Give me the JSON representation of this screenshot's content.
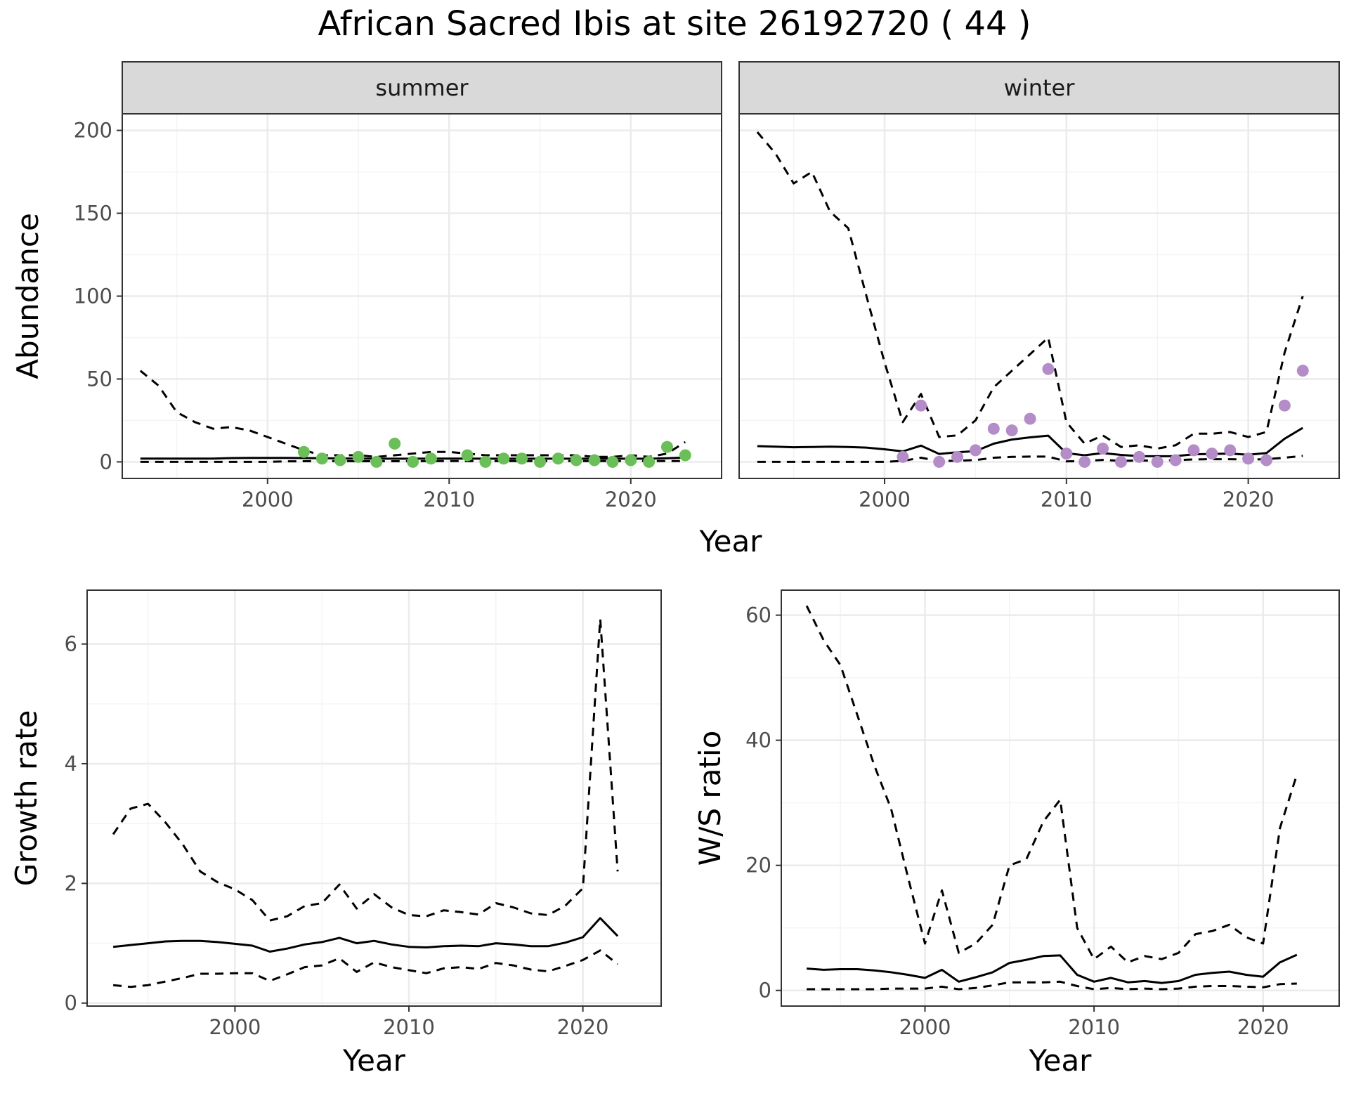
{
  "title": "African Sacred Ibis at site 26192720 ( 44 )",
  "colors": {
    "summer_points": "#6BBF59",
    "winter_points": "#B48CC8",
    "grid_major": "#EBEBEB",
    "grid_minor": "#F4F4F4",
    "strip_fill": "#D9D9D9",
    "line": "#000000"
  },
  "chart_data": [
    {
      "type": "line",
      "panel": "summer",
      "strip_label": "summer",
      "xlabel": "Year",
      "ylabel": "Abundance",
      "xlim": [
        1992,
        2025
      ],
      "ylim": [
        -10,
        210
      ],
      "xticks": [
        2000,
        2010,
        2020
      ],
      "yticks": [
        0,
        50,
        100,
        150,
        200
      ],
      "x": [
        1993,
        1994,
        1995,
        1996,
        1997,
        1998,
        1999,
        2000,
        2001,
        2002,
        2003,
        2004,
        2005,
        2006,
        2007,
        2008,
        2009,
        2010,
        2011,
        2012,
        2013,
        2014,
        2015,
        2016,
        2017,
        2018,
        2019,
        2020,
        2021,
        2022,
        2023
      ],
      "series": [
        {
          "role": "upper",
          "style": "dashed",
          "values": [
            55,
            46,
            30,
            24,
            20,
            21,
            19,
            15,
            11,
            7,
            4,
            4,
            4,
            3,
            4,
            5,
            6,
            6,
            5,
            4,
            4,
            4,
            4,
            4,
            4,
            3,
            3,
            4,
            3,
            5,
            12
          ]
        },
        {
          "role": "estimate",
          "style": "solid",
          "values": [
            2,
            2,
            2,
            2,
            2,
            2.3,
            2.4,
            2.4,
            2.4,
            2.3,
            2.2,
            2.1,
            2,
            1.9,
            1.9,
            1.9,
            2,
            2,
            2,
            1.9,
            1.9,
            1.9,
            1.9,
            1.9,
            1.9,
            1.9,
            1.9,
            1.9,
            1.9,
            2.2,
            2.6
          ]
        },
        {
          "role": "lower",
          "style": "dashed",
          "values": [
            0,
            0,
            0,
            0,
            0,
            0,
            0,
            0,
            0.3,
            0.4,
            0.5,
            0.5,
            0.4,
            0.4,
            0.4,
            0.4,
            0.5,
            0.5,
            0.5,
            0.5,
            0.5,
            0.5,
            0.5,
            0.5,
            0.5,
            0.5,
            0.5,
            0.5,
            0.5,
            0.5,
            0.5
          ]
        }
      ],
      "points": {
        "x": [
          2002,
          2003,
          2004,
          2005,
          2006,
          2007,
          2008,
          2009,
          2011,
          2012,
          2013,
          2014,
          2015,
          2016,
          2017,
          2018,
          2019,
          2020,
          2021,
          2022,
          2023
        ],
        "y": [
          6,
          2,
          1,
          3,
          0,
          11,
          0,
          2,
          4,
          0,
          2,
          2,
          0,
          2,
          1,
          1,
          0,
          1,
          0,
          9,
          4
        ]
      }
    },
    {
      "type": "line",
      "panel": "winter",
      "strip_label": "winter",
      "xlabel": "Year",
      "ylabel": "Abundance",
      "xlim": [
        1992,
        2025
      ],
      "ylim": [
        -10,
        210
      ],
      "xticks": [
        2000,
        2010,
        2020
      ],
      "yticks": [
        0,
        50,
        100,
        150,
        200
      ],
      "x": [
        1993,
        1994,
        1995,
        1996,
        1997,
        1998,
        1999,
        2000,
        2001,
        2002,
        2003,
        2004,
        2005,
        2006,
        2007,
        2008,
        2009,
        2010,
        2011,
        2012,
        2013,
        2014,
        2015,
        2016,
        2017,
        2018,
        2019,
        2020,
        2021,
        2022,
        2023
      ],
      "series": [
        {
          "role": "upper",
          "style": "dashed",
          "values": [
            199,
            186,
            168,
            175,
            151,
            141,
            100,
            60,
            24,
            41,
            15,
            16,
            25,
            45,
            55,
            65,
            75,
            24,
            11,
            16,
            9,
            10,
            8,
            10,
            17,
            17,
            18,
            15,
            18,
            66,
            100
          ]
        },
        {
          "role": "estimate",
          "style": "solid",
          "values": [
            9.5,
            9.2,
            8.8,
            9,
            9.2,
            9,
            8.6,
            7.6,
            6.3,
            9.8,
            4.8,
            5.8,
            6.5,
            11,
            13.5,
            14.8,
            15.8,
            5.2,
            4,
            5.3,
            4.2,
            3.5,
            3.4,
            3.5,
            4.6,
            4.8,
            5,
            4.3,
            5.3,
            14,
            20.5
          ]
        },
        {
          "role": "lower",
          "style": "dashed",
          "values": [
            0,
            0,
            0,
            0,
            0,
            0,
            0,
            0,
            0.6,
            2.5,
            0.5,
            0.7,
            1.1,
            2.5,
            3,
            3.2,
            3.2,
            0.3,
            0.5,
            1.2,
            0.6,
            0.8,
            0.8,
            1,
            1.5,
            1.6,
            1.6,
            1.4,
            1.6,
            2.5,
            3.6
          ]
        }
      ],
      "points": {
        "x": [
          2001,
          2002,
          2003,
          2004,
          2005,
          2006,
          2007,
          2008,
          2009,
          2010,
          2011,
          2012,
          2013,
          2014,
          2015,
          2016,
          2017,
          2018,
          2019,
          2020,
          2021,
          2022,
          2023
        ],
        "y": [
          3,
          34,
          0,
          3,
          7,
          20,
          19,
          26,
          56,
          5,
          0,
          8,
          0,
          3,
          0,
          1,
          7,
          5,
          7,
          2,
          1,
          34,
          55
        ]
      }
    },
    {
      "type": "line",
      "panel": "growth",
      "xlabel": "Year",
      "ylabel": "Growth rate",
      "xlim": [
        1991.5,
        2024.5
      ],
      "ylim": [
        -0.05,
        6.9
      ],
      "xticks": [
        2000,
        2010,
        2020
      ],
      "yticks": [
        0,
        2,
        4,
        6
      ],
      "x": [
        1993,
        1994,
        1995,
        1996,
        1997,
        1998,
        1999,
        2000,
        2001,
        2002,
        2003,
        2004,
        2005,
        2006,
        2007,
        2008,
        2009,
        2010,
        2011,
        2012,
        2013,
        2014,
        2015,
        2016,
        2017,
        2018,
        2019,
        2020,
        2021,
        2022
      ],
      "series": [
        {
          "role": "upper",
          "style": "dashed",
          "values": [
            2.82,
            3.25,
            3.33,
            3.02,
            2.65,
            2.2,
            2.02,
            1.9,
            1.72,
            1.38,
            1.45,
            1.62,
            1.67,
            1.98,
            1.58,
            1.82,
            1.6,
            1.47,
            1.45,
            1.55,
            1.52,
            1.48,
            1.67,
            1.6,
            1.5,
            1.47,
            1.63,
            1.92,
            6.42,
            2.2
          ]
        },
        {
          "role": "estimate",
          "style": "solid",
          "values": [
            0.94,
            0.97,
            1,
            1.03,
            1.04,
            1.04,
            1.02,
            0.99,
            0.96,
            0.86,
            0.91,
            0.98,
            1.02,
            1.09,
            1,
            1.04,
            0.98,
            0.94,
            0.93,
            0.95,
            0.96,
            0.95,
            1,
            0.98,
            0.95,
            0.95,
            1.01,
            1.1,
            1.42,
            1.12
          ]
        },
        {
          "role": "lower",
          "style": "dashed",
          "values": [
            0.3,
            0.27,
            0.3,
            0.36,
            0.42,
            0.49,
            0.49,
            0.5,
            0.5,
            0.37,
            0.48,
            0.6,
            0.63,
            0.75,
            0.52,
            0.68,
            0.6,
            0.55,
            0.5,
            0.58,
            0.6,
            0.57,
            0.67,
            0.63,
            0.56,
            0.53,
            0.62,
            0.72,
            0.88,
            0.65
          ]
        }
      ]
    },
    {
      "type": "line",
      "panel": "ws_ratio",
      "xlabel": "Year",
      "ylabel": "W/S ratio",
      "xlim": [
        1991.5,
        2024.5
      ],
      "ylim": [
        -2.5,
        64
      ],
      "xticks": [
        2000,
        2010,
        2020
      ],
      "yticks": [
        0,
        20,
        40,
        60
      ],
      "x": [
        1993,
        1994,
        1995,
        1996,
        1997,
        1998,
        1999,
        2000,
        2001,
        2002,
        2003,
        2004,
        2005,
        2006,
        2007,
        2008,
        2009,
        2010,
        2011,
        2012,
        2013,
        2014,
        2015,
        2016,
        2017,
        2018,
        2019,
        2020,
        2021,
        2022
      ],
      "series": [
        {
          "role": "upper",
          "style": "dashed",
          "values": [
            61.5,
            56,
            52,
            44,
            36,
            29,
            18,
            7.5,
            16,
            6,
            7.5,
            10.5,
            20,
            21,
            27,
            30.5,
            10,
            5,
            7,
            4.5,
            5.5,
            5,
            6,
            9,
            9.5,
            10.5,
            8.5,
            7.5,
            26,
            34.5
          ]
        },
        {
          "role": "estimate",
          "style": "solid",
          "values": [
            3.5,
            3.3,
            3.4,
            3.4,
            3.2,
            2.9,
            2.5,
            2,
            3.3,
            1.4,
            2.1,
            2.9,
            4.4,
            4.9,
            5.5,
            5.6,
            2.5,
            1.4,
            2,
            1.3,
            1.5,
            1.2,
            1.5,
            2.5,
            2.8,
            3,
            2.5,
            2.2,
            4.5,
            5.7
          ]
        },
        {
          "role": "lower",
          "style": "dashed",
          "values": [
            0.2,
            0.2,
            0.2,
            0.2,
            0.2,
            0.3,
            0.3,
            0.3,
            0.6,
            0.2,
            0.4,
            0.8,
            1.3,
            1.3,
            1.3,
            1.4,
            0.7,
            0.2,
            0.4,
            0.2,
            0.3,
            0.2,
            0.3,
            0.6,
            0.7,
            0.7,
            0.6,
            0.5,
            1,
            1.1
          ]
        }
      ]
    }
  ]
}
